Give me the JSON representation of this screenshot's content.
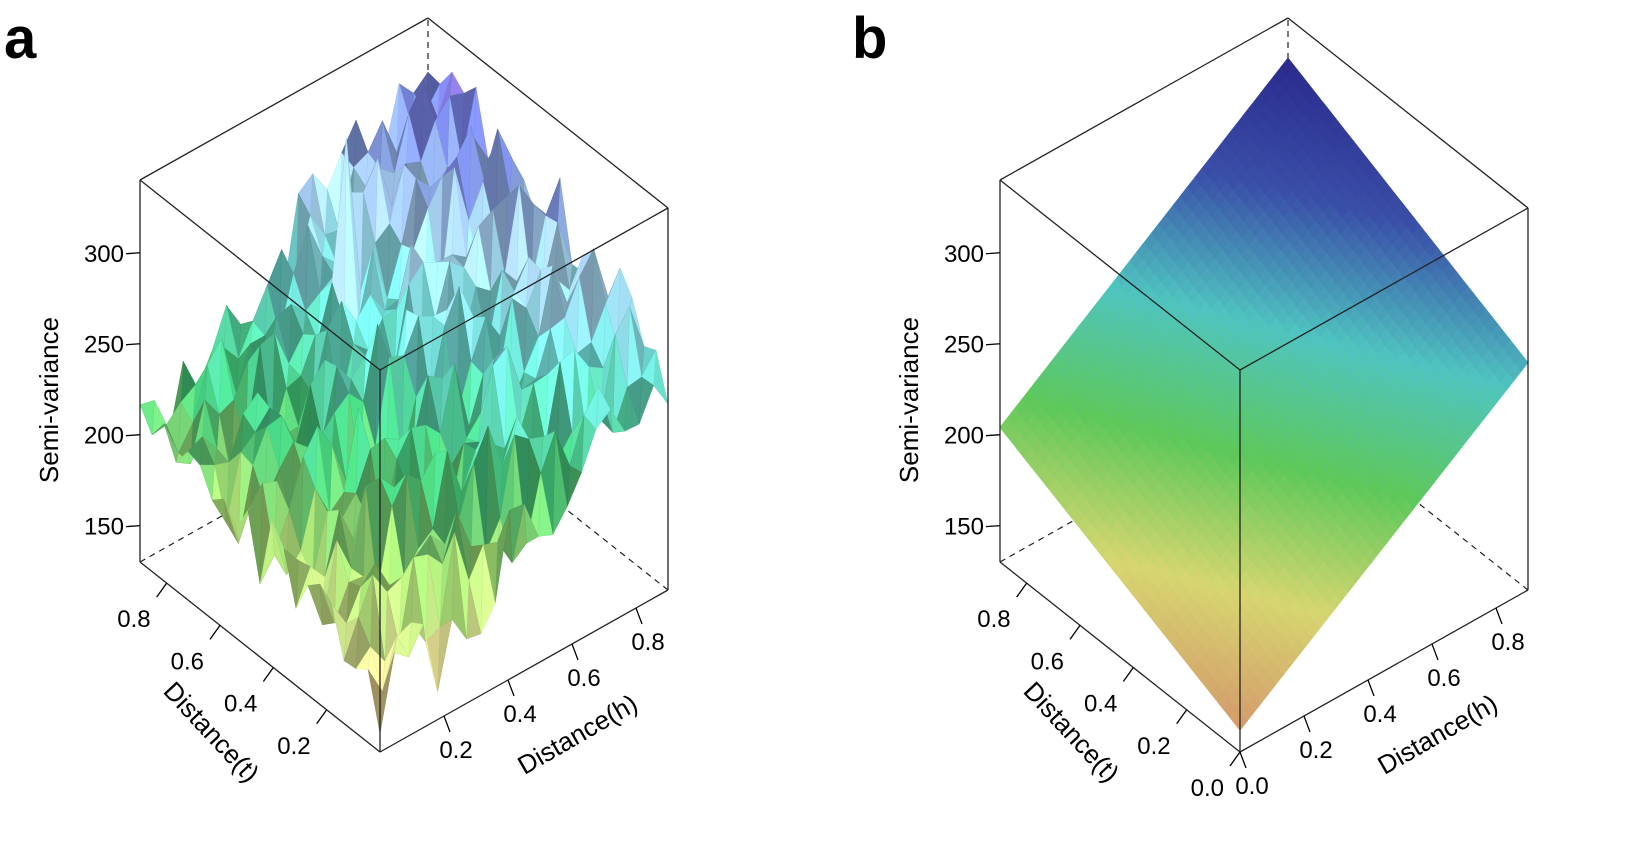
{
  "chart_data": [
    {
      "panel": "a",
      "type": "surface",
      "surface_style": "empirical",
      "xlabel": "Distance(t)",
      "ylabel": "Distance(h)",
      "zlabel": "Semi-variance",
      "x_ticks": [
        "0.2",
        "0.4",
        "0.6",
        "0.8"
      ],
      "y_ticks": [
        "0.2",
        "0.4",
        "0.6",
        "0.8"
      ],
      "z_ticks": [
        "150",
        "200",
        "250",
        "300"
      ],
      "xlim": [
        0,
        0.9
      ],
      "ylim": [
        0,
        0.9
      ],
      "zlim": [
        130,
        340
      ],
      "grid_size": 20,
      "value_range": [
        135,
        335
      ],
      "peak_value": 335,
      "colormap": [
        "#d9a36f",
        "#dcd890",
        "#9ed46e",
        "#3fbf74",
        "#6ad8cf",
        "#a9d4f0",
        "#6f7bd8",
        "#b070e0"
      ]
    },
    {
      "panel": "b",
      "type": "surface",
      "surface_style": "fitted",
      "xlabel": "Distance(t)",
      "ylabel": "Distance(h)",
      "zlabel": "Semi-variance",
      "x_ticks": [
        "0.0",
        "0.2",
        "0.4",
        "0.6",
        "0.8"
      ],
      "y_ticks": [
        "0.0",
        "0.2",
        "0.4",
        "0.6",
        "0.8"
      ],
      "z_ticks": [
        "150",
        "200",
        "250",
        "300"
      ],
      "xlim": [
        0,
        0.9
      ],
      "ylim": [
        0,
        0.9
      ],
      "zlim": [
        130,
        340
      ],
      "corner_values": {
        "t0_h0": 142,
        "t09_h0": 204,
        "t0_h09": 255,
        "t09_h09": 318
      },
      "colormap": [
        "#d49a6c",
        "#d6d670",
        "#5ec85a",
        "#4fc4c0",
        "#3a4fa8",
        "#2a2a8c"
      ]
    }
  ]
}
